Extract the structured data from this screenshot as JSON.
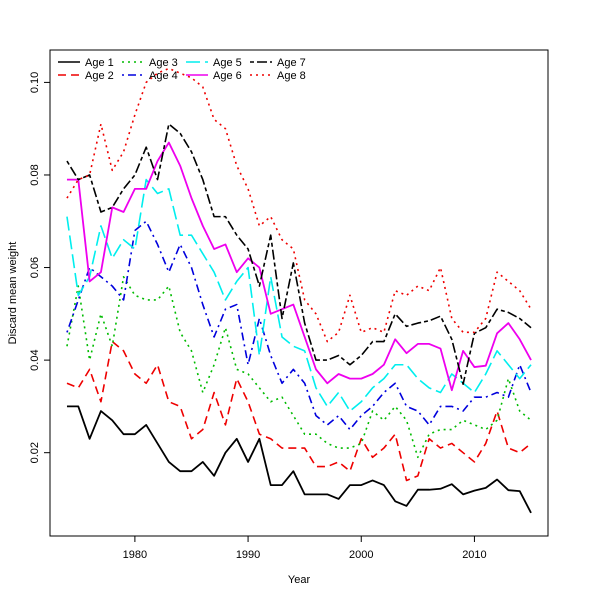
{
  "chart_data": {
    "type": "line",
    "title": "",
    "xlabel": "Year",
    "ylabel": "Discard mean weight",
    "xlim": [
      1972.5,
      2016.5
    ],
    "ylim": [
      0.002,
      0.107
    ],
    "xticks": [
      1980,
      1990,
      2000,
      2010
    ],
    "yticks": [
      0.02,
      0.04,
      0.06,
      0.08,
      0.1
    ],
    "ytick_labels": [
      "0.02",
      "0.04",
      "0.06",
      "0.08",
      "0.10"
    ],
    "grid": false,
    "legend_position": "top-left",
    "x": [
      1974,
      1975,
      1976,
      1977,
      1978,
      1979,
      1980,
      1981,
      1982,
      1983,
      1984,
      1985,
      1986,
      1987,
      1988,
      1989,
      1990,
      1991,
      1992,
      1993,
      1994,
      1995,
      1996,
      1997,
      1998,
      1999,
      2000,
      2001,
      2002,
      2003,
      2004,
      2005,
      2006,
      2007,
      2008,
      2009,
      2010,
      2011,
      2012,
      2013,
      2014,
      2015
    ],
    "series": [
      {
        "name": "Age 1",
        "color": "#000000",
        "dash": "solid",
        "values": [
          0.03,
          0.03,
          0.023,
          0.029,
          0.027,
          0.024,
          0.024,
          0.026,
          0.022,
          0.018,
          0.016,
          0.016,
          0.018,
          0.015,
          0.02,
          0.023,
          0.018,
          0.023,
          0.013,
          0.013,
          0.016,
          0.011,
          0.011,
          0.011,
          0.01,
          0.013,
          0.013,
          0.014,
          0.013,
          0.0095,
          0.0085,
          0.012,
          0.012,
          0.0122,
          0.0132,
          0.011,
          0.0118,
          0.0124,
          0.0142,
          0.0119,
          0.0117,
          0.007
        ]
      },
      {
        "name": "Age 2",
        "color": "#ee0000",
        "dash": "dashed",
        "values": [
          0.035,
          0.034,
          0.038,
          0.031,
          0.044,
          0.042,
          0.037,
          0.035,
          0.039,
          0.031,
          0.03,
          0.023,
          0.025,
          0.033,
          0.026,
          0.036,
          0.031,
          0.024,
          0.023,
          0.021,
          0.021,
          0.021,
          0.017,
          0.017,
          0.018,
          0.016,
          0.023,
          0.019,
          0.021,
          0.024,
          0.014,
          0.015,
          0.023,
          0.021,
          0.022,
          0.02,
          0.018,
          0.022,
          0.029,
          0.021,
          0.02,
          0.022
        ]
      },
      {
        "name": "Age 3",
        "color": "#00bb00",
        "dash": "dotted",
        "values": [
          0.043,
          0.056,
          0.04,
          0.05,
          0.043,
          0.058,
          0.054,
          0.053,
          0.053,
          0.056,
          0.046,
          0.042,
          0.033,
          0.039,
          0.047,
          0.038,
          0.037,
          0.034,
          0.031,
          0.032,
          0.028,
          0.024,
          0.024,
          0.022,
          0.021,
          0.021,
          0.022,
          0.029,
          0.027,
          0.03,
          0.027,
          0.019,
          0.024,
          0.025,
          0.025,
          0.027,
          0.026,
          0.025,
          0.027,
          0.036,
          0.029,
          0.027
        ]
      },
      {
        "name": "Age 4",
        "color": "#0000dd",
        "dash": "dashdot",
        "values": [
          0.046,
          0.053,
          0.06,
          0.058,
          0.056,
          0.053,
          0.068,
          0.07,
          0.065,
          0.059,
          0.065,
          0.06,
          0.052,
          0.045,
          0.051,
          0.052,
          0.039,
          0.049,
          0.041,
          0.035,
          0.038,
          0.035,
          0.028,
          0.026,
          0.028,
          0.025,
          0.028,
          0.03,
          0.033,
          0.035,
          0.03,
          0.029,
          0.026,
          0.03,
          0.03,
          0.029,
          0.032,
          0.032,
          0.033,
          0.032,
          0.039,
          0.033
        ]
      },
      {
        "name": "Age 5",
        "color": "#00eeee",
        "dash": "longdash",
        "values": [
          0.071,
          0.054,
          0.058,
          0.069,
          0.062,
          0.066,
          0.064,
          0.079,
          0.076,
          0.077,
          0.067,
          0.067,
          0.063,
          0.059,
          0.053,
          0.057,
          0.06,
          0.041,
          0.058,
          0.045,
          0.043,
          0.042,
          0.034,
          0.03,
          0.033,
          0.029,
          0.031,
          0.034,
          0.036,
          0.039,
          0.039,
          0.036,
          0.034,
          0.033,
          0.037,
          0.035,
          0.033,
          0.037,
          0.042,
          0.039,
          0.036,
          0.039
        ]
      },
      {
        "name": "Age 6",
        "color": "#ee00ee",
        "dash": "solid",
        "values": [
          0.079,
          0.079,
          0.057,
          0.059,
          0.073,
          0.072,
          0.077,
          0.077,
          0.083,
          0.087,
          0.082,
          0.075,
          0.069,
          0.064,
          0.065,
          0.059,
          0.062,
          0.06,
          0.05,
          0.051,
          0.052,
          0.045,
          0.038,
          0.035,
          0.037,
          0.036,
          0.036,
          0.037,
          0.039,
          0.0445,
          0.0415,
          0.0435,
          0.0435,
          0.0425,
          0.0335,
          0.042,
          0.0385,
          0.0388,
          0.0458,
          0.048,
          0.0445,
          0.04
        ]
      },
      {
        "name": "Age 7",
        "color": "#000000",
        "dash": "twodash",
        "values": [
          0.083,
          0.079,
          0.08,
          0.072,
          0.073,
          0.077,
          0.08,
          0.086,
          0.079,
          0.091,
          0.089,
          0.085,
          0.079,
          0.071,
          0.071,
          0.067,
          0.064,
          0.056,
          0.067,
          0.049,
          0.061,
          0.048,
          0.04,
          0.04,
          0.041,
          0.039,
          0.041,
          0.044,
          0.044,
          0.05,
          0.0473,
          0.048,
          0.0485,
          0.0495,
          0.0445,
          0.0348,
          0.0458,
          0.047,
          0.051,
          0.0503,
          0.049,
          0.047
        ]
      },
      {
        "name": "Age 8",
        "color": "#ee0000",
        "dash": "dotted",
        "values": [
          0.075,
          0.079,
          0.08,
          0.091,
          0.081,
          0.085,
          0.093,
          0.1,
          0.102,
          0.103,
          0.102,
          0.101,
          0.099,
          0.092,
          0.09,
          0.082,
          0.077,
          0.069,
          0.071,
          0.066,
          0.064,
          0.053,
          0.05,
          0.044,
          0.046,
          0.054,
          0.046,
          0.047,
          0.046,
          0.055,
          0.054,
          0.056,
          0.055,
          0.06,
          0.049,
          0.046,
          0.046,
          0.049,
          0.059,
          0.057,
          0.055,
          0.051
        ]
      }
    ]
  }
}
